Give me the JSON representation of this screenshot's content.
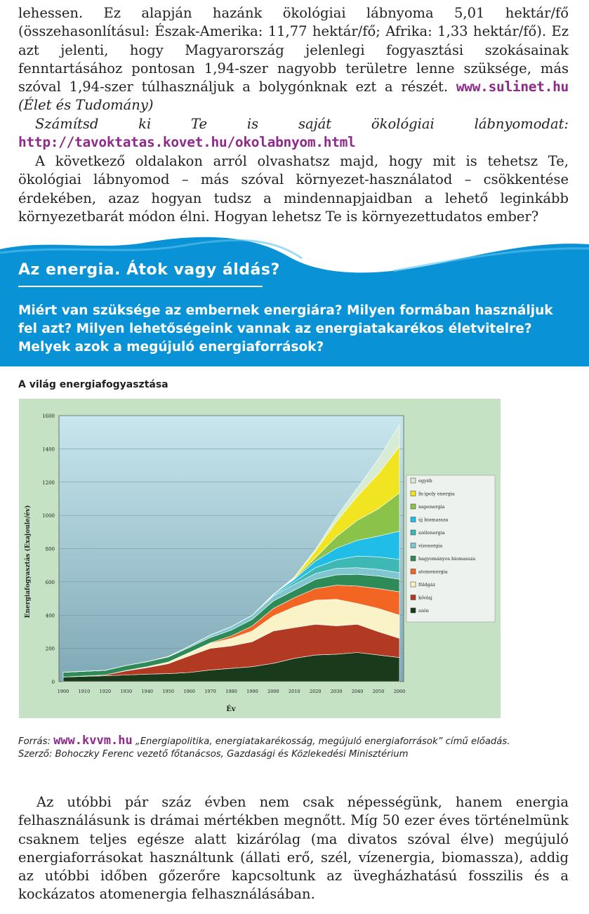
{
  "paragraph1": {
    "text_a": "lehessen. Ez alapján hazánk ökológiai lábnyoma 5,01 hektár/fő (összehasonlításul: Észak-Amerika: 11,77 hektár/fő; Afrika: 1,33 hektár/fő). Ez azt jelenti, hogy Magyarország jelenlegi fogyasztási szokásainak fenntartásához pontosan 1,94-szer nagyobb területre lenne szüksége, más szóval 1,94-szer túlhasználjuk a bolygónknak ezt a részét. ",
    "link": "www.sulinet.hu",
    "source": " (Élet és Tudomány)"
  },
  "paragraph2": {
    "italic": "Számítsd ki Te is saját ökológiai lábnyomodat: ",
    "link": "http://tavoktatas.kovet.hu/okolabnyom.html"
  },
  "paragraph3": "A következő oldalakon arról olvashatsz majd, hogy mit is tehetsz Te, ökológiai lábnyomod – más szóval környezet-használatod – csökkentése érdekében, azaz hogyan tudsz a mindennapjaidban a lehető leginkább környezetbarát módon élni. Hogyan lehetsz Te is környezettudatos ember?",
  "banner": {
    "title": "Az energia. Átok vagy áldás?",
    "questions": "Miért van szüksége az embernek energiára? Milyen formában használjuk fel azt? Milyen lehetőségeink vannak az energiatakarékos életvitelre? Melyek azok a megújuló energiaforrások?",
    "color": "#0a92d6"
  },
  "chart_title": "A világ energiafogyasztása",
  "chart_data": {
    "type": "area",
    "stacked": true,
    "xlabel": "Év",
    "ylabel": "Energiafogyasztás (Exajoule/év)",
    "ylim": [
      0,
      1600
    ],
    "yticks": [
      "0",
      "200",
      "400",
      "600",
      "800",
      "1000",
      "1200",
      "1400",
      "1600"
    ],
    "x": [
      "1900",
      "1910",
      "1920",
      "1930",
      "1940",
      "1950",
      "1960",
      "1970",
      "1980",
      "1990",
      "2000",
      "2010",
      "2020",
      "2030",
      "2040",
      "2050",
      "2060"
    ],
    "legend_position": "right",
    "series": [
      {
        "name": "szén",
        "color": "#1a3a1c",
        "values": [
          28,
          32,
          35,
          40,
          45,
          48,
          55,
          70,
          80,
          90,
          110,
          140,
          160,
          165,
          175,
          160,
          145
        ]
      },
      {
        "name": "kőolaj",
        "color": "#b23a22",
        "values": [
          0,
          2,
          5,
          25,
          40,
          60,
          100,
          130,
          135,
          150,
          195,
          185,
          185,
          170,
          170,
          140,
          115
        ]
      },
      {
        "name": "földgáz",
        "color": "#fbf3c8",
        "values": [
          0,
          0,
          0,
          2,
          5,
          10,
          20,
          30,
          45,
          65,
          90,
          125,
          145,
          160,
          125,
          140,
          140
        ]
      },
      {
        "name": "atomenergia",
        "color": "#f26522",
        "values": [
          0,
          0,
          0,
          0,
          0,
          0,
          0,
          3,
          15,
          30,
          45,
          55,
          70,
          85,
          105,
          120,
          140
        ]
      },
      {
        "name": "hagyományos biomassza",
        "color": "#2e8b57",
        "values": [
          28,
          28,
          28,
          30,
          30,
          30,
          30,
          32,
          35,
          40,
          45,
          45,
          55,
          62,
          70,
          75,
          75
        ]
      },
      {
        "name": "vízenergia",
        "color": "#7fc6d0",
        "values": [
          0,
          0,
          0,
          0,
          0,
          3,
          8,
          15,
          20,
          25,
          30,
          35,
          35,
          40,
          40,
          40,
          40
        ]
      },
      {
        "name": "szélenergia",
        "color": "#3db8b4",
        "values": [
          0,
          0,
          0,
          0,
          0,
          0,
          0,
          0,
          0,
          0,
          5,
          15,
          35,
          50,
          70,
          75,
          80
        ]
      },
      {
        "name": "új biomassza",
        "color": "#1fbde8",
        "values": [
          0,
          0,
          0,
          0,
          0,
          0,
          0,
          0,
          0,
          0,
          5,
          15,
          40,
          70,
          95,
          125,
          170
        ]
      },
      {
        "name": "napenergia",
        "color": "#8bc24a",
        "values": [
          0,
          0,
          0,
          0,
          0,
          0,
          0,
          0,
          0,
          0,
          0,
          5,
          20,
          70,
          120,
          165,
          230
        ]
      },
      {
        "name": "fn-ipoly energia",
        "color": "#f0e520",
        "values": [
          0,
          0,
          0,
          0,
          0,
          0,
          0,
          0,
          0,
          0,
          0,
          5,
          40,
          90,
          145,
          210,
          280
        ]
      },
      {
        "name": "egyéb",
        "color": "#d8ecd5",
        "values": [
          0,
          0,
          0,
          0,
          0,
          0,
          0,
          0,
          0,
          0,
          0,
          5,
          10,
          30,
          50,
          90,
          130
        ]
      }
    ],
    "legend_extra": "#ffffff"
  },
  "source": {
    "prefix": "Forrás: ",
    "link": "www.kvvm.hu",
    "text": " „Energiapolitika, energiatakarékosság, megújuló energiaforrások” című előadás.",
    "line2": "Szerző: Bohoczky Ferenc vezető főtanácsos, Gazdasági és Közlekedési Minisztérium"
  },
  "paragraph4": "Az utóbbi pár száz évben nem csak népességünk, hanem energia felhasználásunk is drámai mértékben megnőtt. Míg 50 ezer éves történelmünk csaknem teljes egésze alatt kizárólag (ma divatos szóval élve) megújuló energiaforrásokat használtunk (állati erő, szél, vízenergia, biomassza), addig az utóbbi időben gőzerőre kapcsoltunk az üvegházhatású fosszilis és a kockázatos atomenergia felhasználásában."
}
